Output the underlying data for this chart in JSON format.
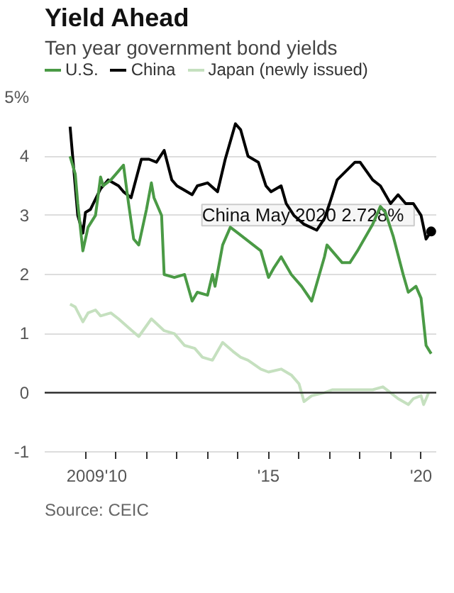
{
  "chart_data": {
    "type": "line",
    "title": "Yield Ahead",
    "subtitle": "Ten year government bond yields",
    "series": [
      {
        "name": "U.S.",
        "color": "#4a9a45",
        "x": [
          "2008-07",
          "2008-09",
          "2008-10",
          "2008-12",
          "2009-02",
          "2009-05",
          "2009-07",
          "2009-08",
          "2009-11",
          "2010-01",
          "2010-04",
          "2010-06",
          "2010-08",
          "2010-10",
          "2011-01",
          "2011-03",
          "2011-04",
          "2011-07",
          "2011-08",
          "2011-12",
          "2012-04",
          "2012-07",
          "2012-09",
          "2013-01",
          "2013-03",
          "2013-04",
          "2013-07",
          "2013-10",
          "2014-01",
          "2014-10",
          "2015-01",
          "2015-03",
          "2015-06",
          "2015-10",
          "2016-02",
          "2016-06",
          "2016-11",
          "2016-12",
          "2017-06",
          "2017-09",
          "2017-12",
          "2018-06",
          "2018-09",
          "2018-11",
          "2019-02",
          "2019-06",
          "2019-08",
          "2019-11",
          "2020-01",
          "2020-03",
          "2020-05"
        ],
        "values": [
          4.0,
          3.7,
          3.2,
          2.4,
          2.8,
          3.0,
          3.65,
          3.5,
          3.6,
          3.7,
          3.85,
          3.2,
          2.6,
          2.5,
          3.1,
          3.55,
          3.3,
          3.0,
          2.0,
          1.95,
          2.0,
          1.55,
          1.7,
          1.65,
          2.0,
          1.8,
          2.5,
          2.8,
          2.7,
          2.4,
          1.95,
          2.1,
          2.3,
          2.0,
          1.8,
          1.55,
          2.3,
          2.5,
          2.2,
          2.2,
          2.4,
          2.85,
          3.15,
          3.05,
          2.65,
          2.0,
          1.7,
          1.8,
          1.6,
          0.8,
          0.66
        ]
      },
      {
        "name": "China",
        "color": "#000000",
        "x": [
          "2008-07",
          "2008-10",
          "2008-12",
          "2009-01",
          "2009-03",
          "2009-07",
          "2009-10",
          "2010-02",
          "2010-04",
          "2010-07",
          "2010-11",
          "2011-02",
          "2011-05",
          "2011-08",
          "2011-11",
          "2012-01",
          "2012-07",
          "2012-09",
          "2013-01",
          "2013-05",
          "2013-08",
          "2013-12",
          "2014-02",
          "2014-05",
          "2014-09",
          "2014-12",
          "2015-02",
          "2015-06",
          "2015-08",
          "2015-11",
          "2016-03",
          "2016-08",
          "2016-11",
          "2017-01",
          "2017-04",
          "2017-11",
          "2018-01",
          "2018-06",
          "2018-09",
          "2019-01",
          "2019-04",
          "2019-07",
          "2019-10",
          "2020-01",
          "2020-03",
          "2020-05"
        ],
        "values": [
          4.5,
          3.0,
          2.7,
          3.05,
          3.1,
          3.45,
          3.6,
          3.5,
          3.4,
          3.3,
          3.95,
          3.95,
          3.9,
          4.1,
          3.6,
          3.5,
          3.35,
          3.5,
          3.55,
          3.4,
          3.95,
          4.55,
          4.45,
          4.0,
          3.9,
          3.5,
          3.4,
          3.5,
          3.2,
          3.0,
          2.85,
          2.75,
          2.95,
          3.2,
          3.6,
          3.9,
          3.9,
          3.6,
          3.5,
          3.2,
          3.35,
          3.2,
          3.2,
          3.0,
          2.6,
          2.728
        ]
      },
      {
        "name": "Japan (newly issued)",
        "color": "#c5e0bf",
        "x": [
          "2008-07",
          "2008-09",
          "2008-12",
          "2009-02",
          "2009-05",
          "2009-07",
          "2009-11",
          "2010-02",
          "2010-06",
          "2010-10",
          "2011-03",
          "2011-08",
          "2011-12",
          "2012-04",
          "2012-08",
          "2012-11",
          "2013-03",
          "2013-07",
          "2013-11",
          "2014-02",
          "2014-05",
          "2014-10",
          "2015-01",
          "2015-06",
          "2015-10",
          "2016-01",
          "2016-03",
          "2016-06",
          "2016-11",
          "2017-02",
          "2017-07",
          "2018-02",
          "2018-06",
          "2018-10",
          "2019-01",
          "2019-04",
          "2019-08",
          "2019-10",
          "2020-01",
          "2020-02",
          "2020-04"
        ],
        "values": [
          1.5,
          1.45,
          1.2,
          1.35,
          1.4,
          1.3,
          1.35,
          1.25,
          1.1,
          0.95,
          1.25,
          1.05,
          1.0,
          0.8,
          0.75,
          0.6,
          0.55,
          0.85,
          0.7,
          0.6,
          0.55,
          0.4,
          0.35,
          0.4,
          0.3,
          0.15,
          -0.15,
          -0.05,
          0.0,
          0.05,
          0.05,
          0.05,
          0.05,
          0.1,
          0.0,
          -0.1,
          -0.2,
          -0.1,
          -0.05,
          -0.2,
          0.0
        ]
      }
    ],
    "xlim": [
      "2007-09",
      "2020-07"
    ],
    "xticks": [
      {
        "value": "2009",
        "label": "2009"
      },
      {
        "value": "2010",
        "label": "'10"
      },
      {
        "value": "2011",
        "label": null
      },
      {
        "value": "2012",
        "label": null
      },
      {
        "value": "2013",
        "label": null
      },
      {
        "value": "2014",
        "label": null
      },
      {
        "value": "2015",
        "label": "'15"
      },
      {
        "value": "2016",
        "label": null
      },
      {
        "value": "2017",
        "label": null
      },
      {
        "value": "2018",
        "label": null
      },
      {
        "value": "2019",
        "label": null
      },
      {
        "value": "2020",
        "label": "'20"
      }
    ],
    "ylim": [
      -1,
      5
    ],
    "yticks": [
      -1,
      0,
      1,
      2,
      3,
      {
        "value": 4,
        "label": "4"
      },
      {
        "value": 5,
        "label": "5%"
      }
    ],
    "grid": "y",
    "legend": "top",
    "line_style": "solid",
    "ref_lines": [
      {
        "axis": "y",
        "value": 0,
        "color": "#222222"
      }
    ],
    "annotations": [
      {
        "text": "China  May 2020  2.728%",
        "x": "2020-05",
        "y": 2.728
      },
      "Source: CEIC"
    ]
  }
}
